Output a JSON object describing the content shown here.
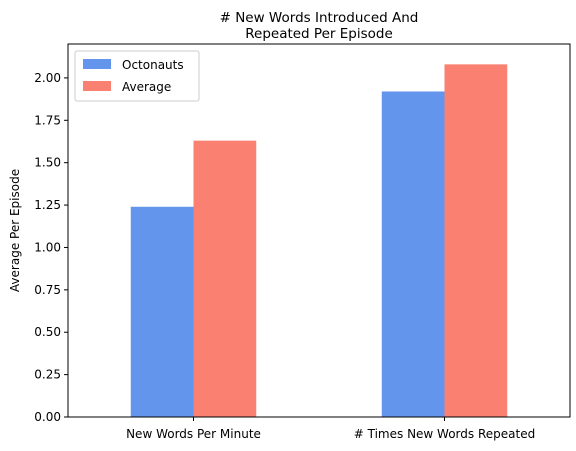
{
  "chart_data": {
    "type": "bar",
    "title_lines": [
      "# New Words Introduced And",
      "Repeated Per Episode"
    ],
    "xlabel": "",
    "ylabel": "Average Per Episode",
    "categories": [
      "New Words Per Minute",
      "# Times New Words Repeated"
    ],
    "series": [
      {
        "name": "Octonauts",
        "values": [
          1.24,
          1.92
        ],
        "color": "#6495ED"
      },
      {
        "name": "Average",
        "values": [
          1.63,
          2.08
        ],
        "color": "#FA8072"
      }
    ],
    "ylim": [
      0,
      2.2
    ],
    "yticks": [
      "0.00",
      "0.25",
      "0.50",
      "0.75",
      "1.00",
      "1.25",
      "1.50",
      "1.75",
      "2.00"
    ],
    "grid": false,
    "legend_position": "top-left"
  }
}
